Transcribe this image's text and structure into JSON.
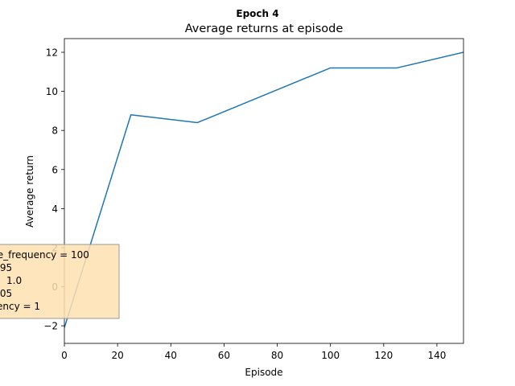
{
  "chart_data": {
    "type": "line",
    "suptitle": "Epoch 4",
    "title": "Average returns at episode",
    "xlabel": "Episode",
    "ylabel": "Average return",
    "xlim": [
      0,
      150
    ],
    "ylim": [
      -2.9,
      12.7
    ],
    "xticks": [
      0,
      20,
      40,
      60,
      80,
      100,
      120,
      140
    ],
    "yticks": [
      -2,
      0,
      2,
      4,
      6,
      8,
      10,
      12
    ],
    "grid": false,
    "series": [
      {
        "color": "#1f77b4",
        "x": [
          0,
          25,
          50,
          75,
          100,
          125,
          150
        ],
        "y": [
          -2.1,
          8.8,
          8.4,
          9.8,
          11.2,
          11.2,
          12.0
        ]
      }
    ],
    "annotation": {
      "lines": [
        "te_frequency = 100",
        ".95",
        "1.0",
        ".05",
        "ency = 1"
      ],
      "background": "#ffe0b0",
      "border": "#999999"
    }
  }
}
